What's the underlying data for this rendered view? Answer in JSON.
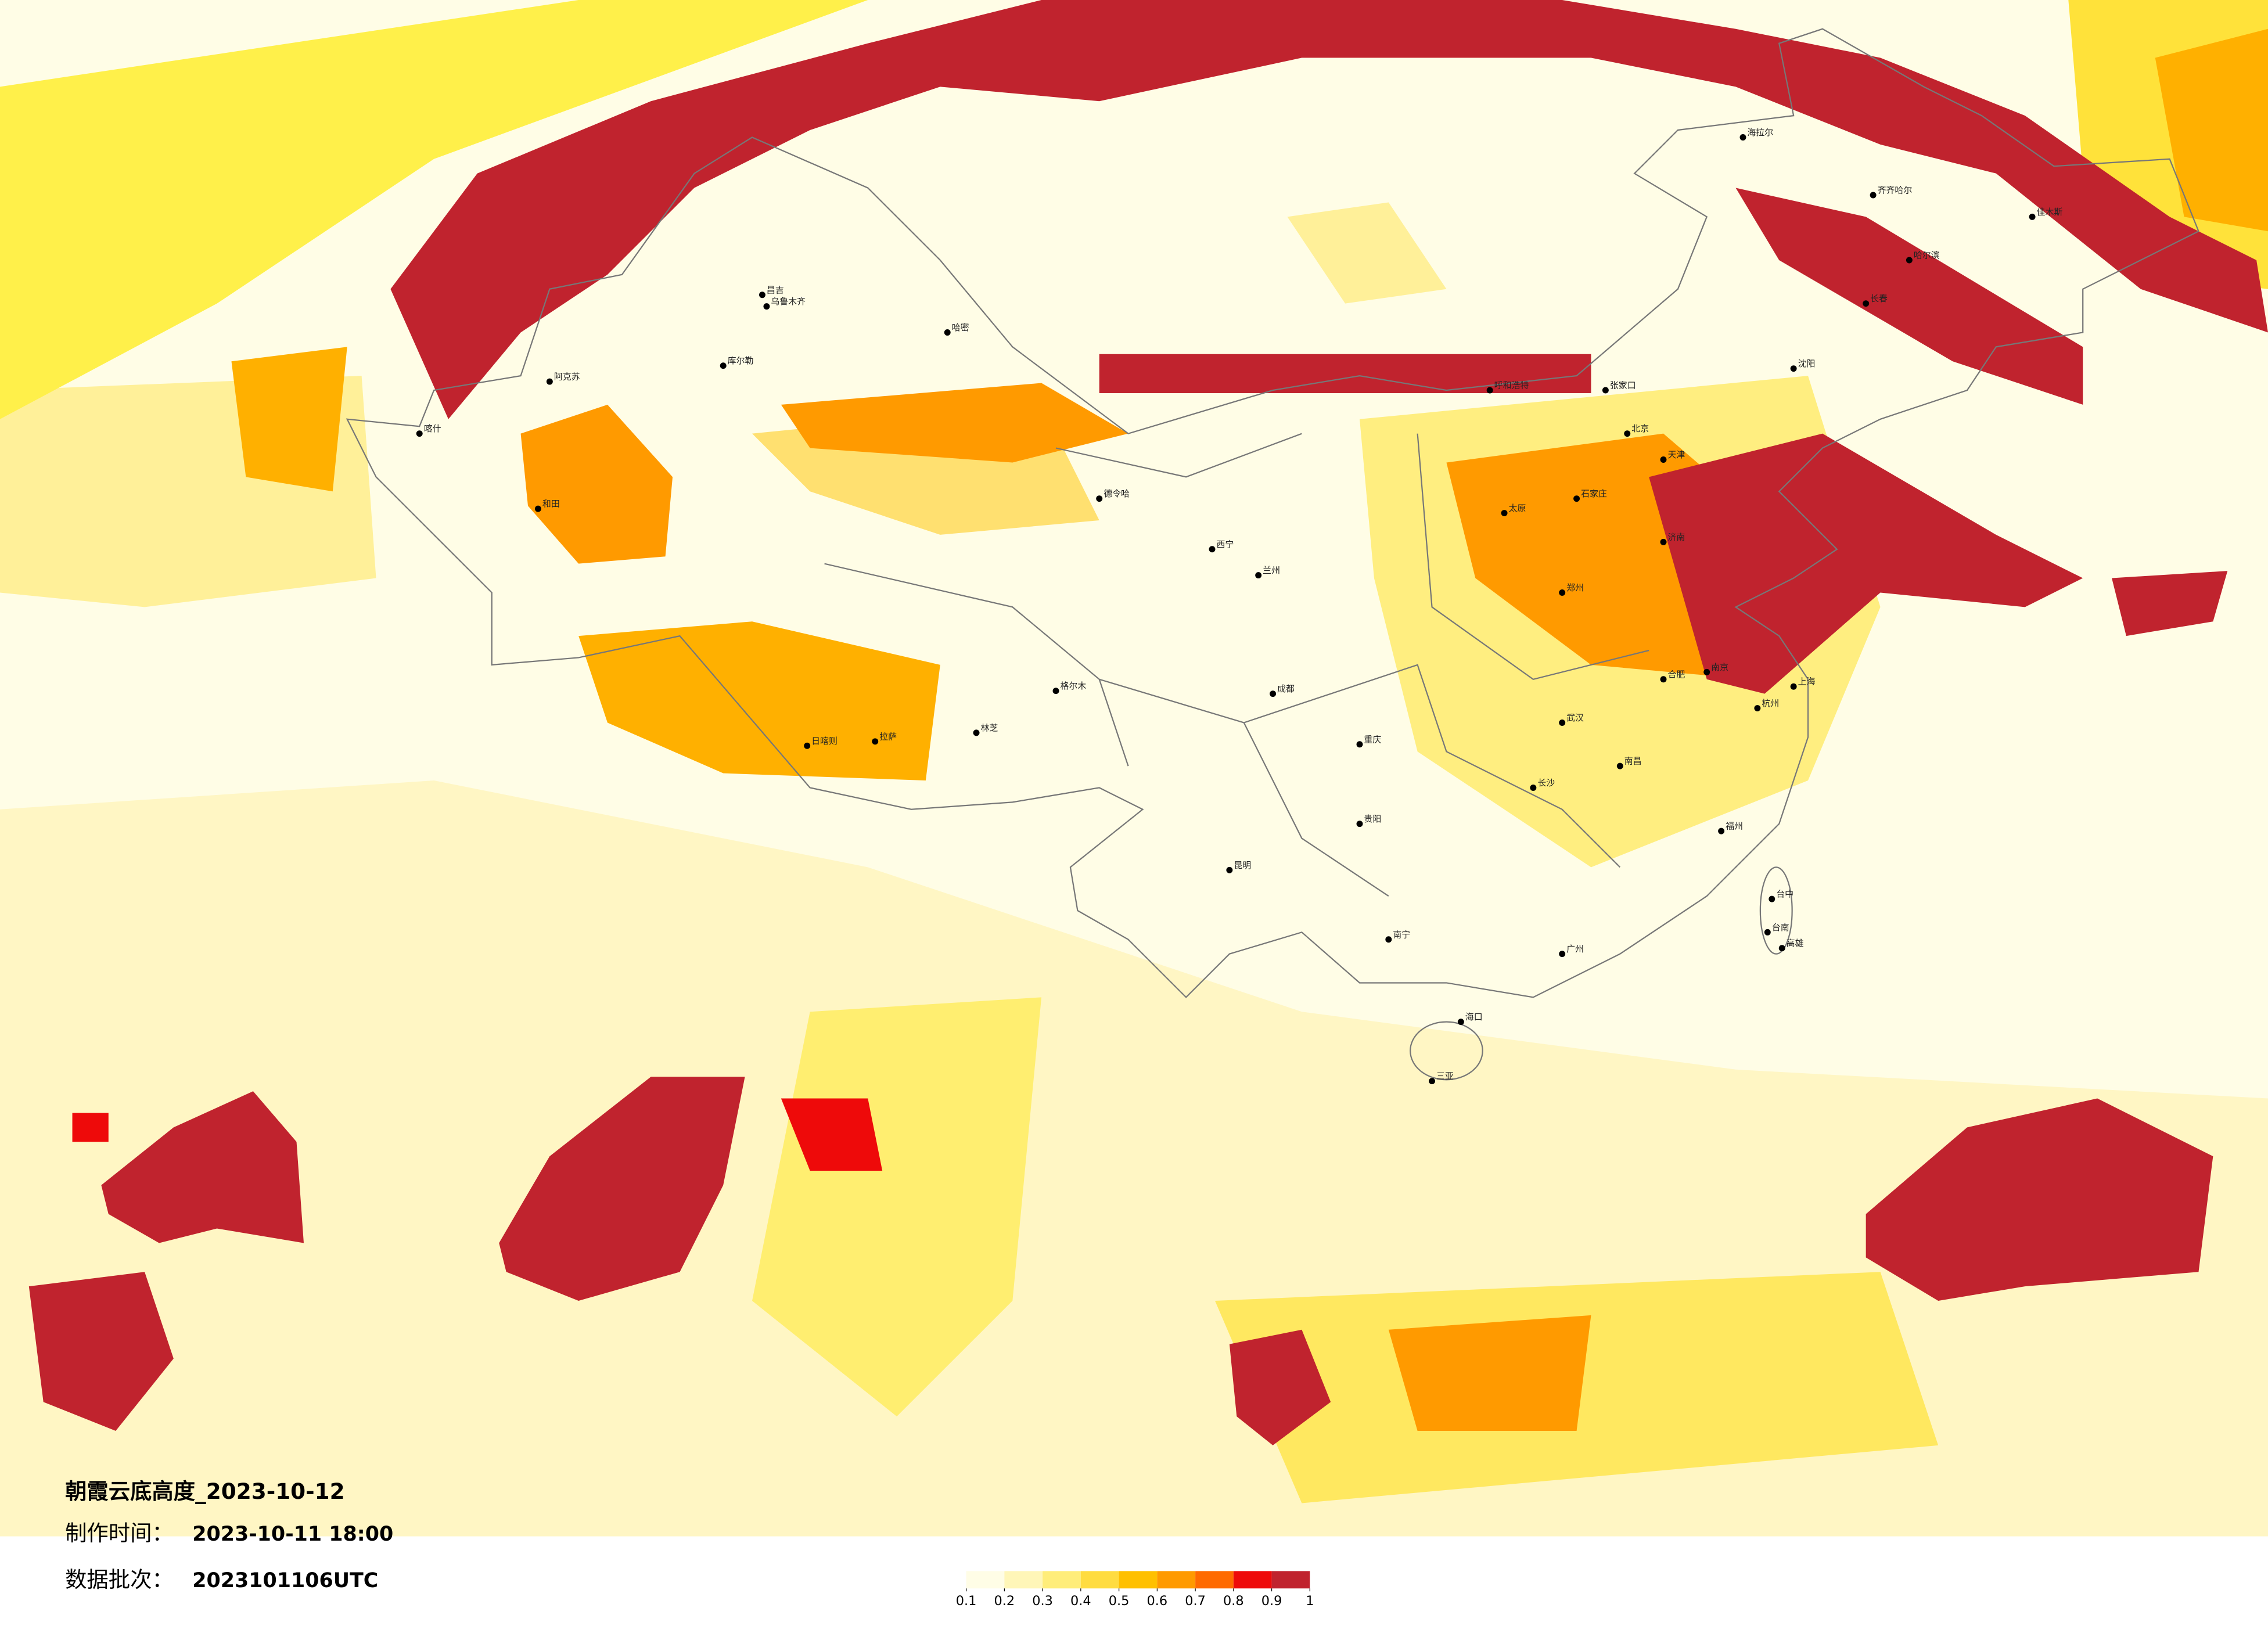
{
  "header": {
    "title": "朝霞云底高度_2023-10-12",
    "made_label": "制作时间：",
    "made_time": "2023-10-11 18:00",
    "batch_label": "数据批次：",
    "batch": "2023101106UTC"
  },
  "legend": {
    "ticks": [
      0.1,
      0.2,
      0.3,
      0.4,
      0.5,
      0.6,
      0.7,
      0.8,
      0.9,
      1
    ],
    "colors": [
      "#fffde6",
      "#fff6b8",
      "#ffed7a",
      "#ffdc40",
      "#ffc000",
      "#ff9a00",
      "#ff6a00",
      "#ee0a0a",
      "#c0232e"
    ]
  },
  "cities": [
    {
      "name": "乌鲁木齐"
    },
    {
      "name": "昌吉"
    },
    {
      "name": "哈密"
    },
    {
      "name": "库尔勒"
    },
    {
      "name": "阿克苏"
    },
    {
      "name": "喀什"
    },
    {
      "name": "和田"
    },
    {
      "name": "格尔木"
    },
    {
      "name": "德令哈"
    },
    {
      "name": "西宁"
    },
    {
      "name": "兰州"
    },
    {
      "name": "拉萨"
    },
    {
      "name": "日喀则"
    },
    {
      "name": "林芝"
    },
    {
      "name": "昆明"
    },
    {
      "name": "成都"
    },
    {
      "name": "重庆"
    },
    {
      "name": "贵阳"
    },
    {
      "name": "南宁"
    },
    {
      "name": "海口"
    },
    {
      "name": "三亚"
    },
    {
      "name": "广州"
    },
    {
      "name": "福州"
    },
    {
      "name": "台中"
    },
    {
      "name": "台南"
    },
    {
      "name": "高雄"
    },
    {
      "name": "杭州"
    },
    {
      "name": "上海"
    },
    {
      "name": "南京"
    },
    {
      "name": "合肥"
    },
    {
      "name": "武汉"
    },
    {
      "name": "长沙"
    },
    {
      "name": "南昌"
    },
    {
      "name": "郑州"
    },
    {
      "name": "济南"
    },
    {
      "name": "太原"
    },
    {
      "name": "石家庄"
    },
    {
      "name": "北京"
    },
    {
      "name": "天津"
    },
    {
      "name": "呼和浩特"
    },
    {
      "name": "张家口"
    },
    {
      "name": "沈阳"
    },
    {
      "name": "长春"
    },
    {
      "name": "哈尔滨"
    },
    {
      "name": "海拉尔"
    },
    {
      "name": "齐齐哈尔"
    },
    {
      "name": "佳木斯"
    }
  ]
}
